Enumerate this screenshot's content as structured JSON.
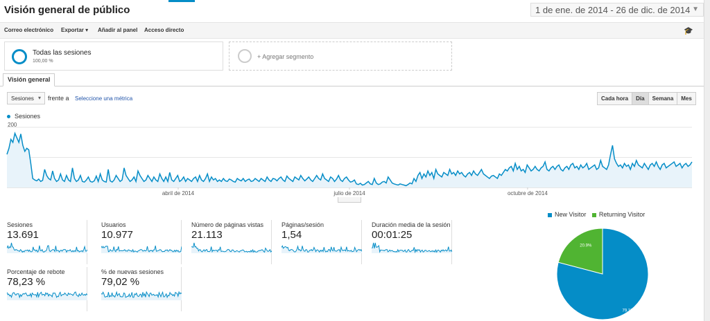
{
  "header": {
    "title": "Visión general de público",
    "date_range": "1 de ene. de 2014 - 26 de dic. de 2014"
  },
  "toolbar": {
    "email": "Correo electrónico",
    "export": "Exportar",
    "add_to_dashboard": "Añadir al panel",
    "shortcut": "Acceso directo",
    "help_icon": "graduation-cap-icon"
  },
  "segments": {
    "active": {
      "name": "Todas las sesiones",
      "percent": "100,00 %"
    },
    "add": "+ Agregar segmento"
  },
  "tabs": {
    "overview": "Visión general"
  },
  "metric_controls": {
    "metric": "Sesiones",
    "versus": "frente a",
    "select_metric": "Seleccione una métrica",
    "granularity": [
      "Cada hora",
      "Día",
      "Semana",
      "Mes"
    ],
    "active_granularity": "Día"
  },
  "chart_data": {
    "type": "area",
    "series": [
      {
        "name": "Sesiones",
        "values": [
          110,
          130,
          160,
          150,
          180,
          165,
          150,
          178,
          140,
          120,
          130,
          125,
          80,
          30,
          25,
          22,
          28,
          20,
          24,
          60,
          40,
          30,
          25,
          55,
          30,
          20,
          25,
          45,
          25,
          20,
          40,
          25,
          20,
          65,
          30,
          20,
          25,
          40,
          20,
          18,
          25,
          35,
          20,
          18,
          22,
          38,
          20,
          45,
          25,
          20,
          18,
          60,
          22,
          18,
          25,
          40,
          30,
          20,
          25,
          65,
          40,
          30,
          20,
          25,
          35,
          20,
          55,
          40,
          30,
          20,
          25,
          40,
          30,
          20,
          35,
          25,
          20,
          45,
          30,
          20,
          35,
          20,
          50,
          25,
          20,
          30,
          40,
          20,
          25,
          35,
          20,
          30,
          25,
          20,
          30,
          35,
          20,
          40,
          25,
          20,
          30,
          45,
          20,
          35,
          25,
          30,
          20,
          25,
          20,
          30,
          22,
          20,
          28,
          25,
          20,
          18,
          30,
          25,
          22,
          30,
          20,
          25,
          28,
          20,
          22,
          30,
          25,
          20,
          30,
          25,
          20,
          35,
          25,
          20,
          30,
          28,
          22,
          30,
          35,
          25,
          20,
          38,
          30,
          25,
          20,
          35,
          30,
          25,
          40,
          30,
          22,
          28,
          35,
          25,
          20,
          30,
          40,
          30,
          25,
          45,
          30,
          25,
          20,
          35,
          30,
          20,
          28,
          40,
          25,
          20,
          30,
          35,
          25,
          18,
          20,
          25,
          12,
          10,
          14,
          8,
          10,
          15,
          20,
          12,
          10,
          30,
          15,
          10,
          12,
          18,
          20,
          15,
          35,
          25,
          15,
          12,
          10,
          8,
          12,
          10,
          8,
          6,
          10,
          15,
          12,
          30,
          20,
          40,
          50,
          30,
          45,
          35,
          55,
          40,
          50,
          30,
          60,
          45,
          40,
          35,
          50,
          45,
          40,
          60,
          45,
          50,
          40,
          55,
          45,
          50,
          40,
          35,
          45,
          50,
          40,
          55,
          45,
          40,
          50,
          60,
          45,
          40,
          35,
          30,
          38,
          40,
          35,
          30,
          45,
          40,
          50,
          60,
          55,
          65,
          70,
          55,
          80,
          60,
          70,
          55,
          60,
          50,
          75,
          65,
          55,
          60,
          70,
          60,
          55,
          65,
          70,
          85,
          60,
          55,
          65,
          70,
          60,
          70,
          75,
          60,
          55,
          65,
          70,
          60,
          75,
          80,
          65,
          70,
          60,
          75,
          65,
          70,
          80,
          60,
          65,
          70,
          75,
          60,
          65,
          90,
          70,
          65,
          60,
          75,
          110,
          140,
          95,
          80,
          70,
          75,
          65,
          80,
          70,
          75,
          60,
          80,
          70,
          90,
          75,
          70,
          65,
          80,
          70,
          60,
          75,
          80,
          70,
          85,
          70,
          60,
          75,
          80,
          65,
          70,
          75,
          80,
          85,
          70,
          75,
          80,
          65,
          75,
          80,
          70,
          75,
          85
        ],
        "color": "#058dc7"
      }
    ],
    "y_ticks": [
      "200",
      "100"
    ],
    "ylim": [
      0,
      200
    ],
    "x_ticks": [
      "abril de 2014",
      "julio de 2014",
      "octubre de 2014"
    ],
    "legend": [
      "Sesiones"
    ],
    "grid": true
  },
  "scorecards": [
    {
      "label": "Sesiones",
      "value": "13.691"
    },
    {
      "label": "Usuarios",
      "value": "10.977"
    },
    {
      "label": "Número de páginas vistas",
      "value": "21.113"
    },
    {
      "label": "Páginas/sesión",
      "value": "1,54"
    },
    {
      "label": "Duración media de la sesión",
      "value": "00:01:25"
    },
    {
      "label": "Porcentaje de rebote",
      "value": "78,23 %"
    },
    {
      "label": "% de nuevas sesiones",
      "value": "79,02 %"
    }
  ],
  "pie": {
    "type": "pie",
    "slices": [
      {
        "name": "New Visitor",
        "value": 79.1,
        "label": "79.1%",
        "color": "#058dc7"
      },
      {
        "name": "Returning Visitor",
        "value": 20.9,
        "label": "20.9%",
        "color": "#50b432"
      }
    ]
  }
}
